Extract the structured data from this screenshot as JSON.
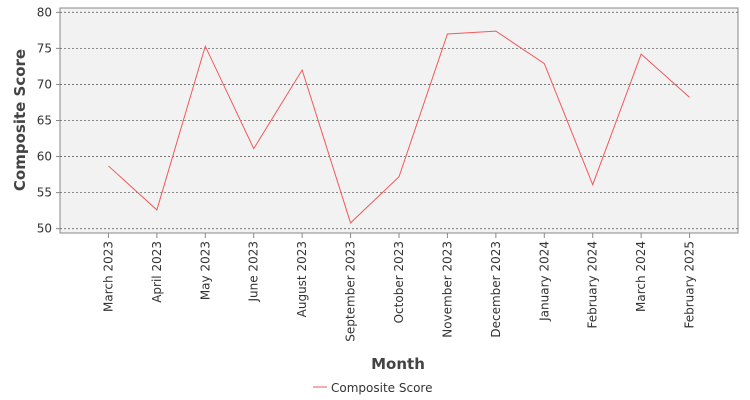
{
  "chart_data": {
    "type": "line",
    "x_label": "Month",
    "y_label": "Composite Score",
    "categories": [
      "March 2023",
      "April 2023",
      "May 2023",
      "June 2023",
      "August 2023",
      "September 2023",
      "October 2023",
      "November 2023",
      "December 2023",
      "January 2024",
      "February 2024",
      "March 2024",
      "February 2025"
    ],
    "series": [
      {
        "name": "Composite Score",
        "color": "#f05a5a",
        "values": [
          58.7,
          52.6,
          75.3,
          61.1,
          72.0,
          50.8,
          57.2,
          77.0,
          77.4,
          72.9,
          56.1,
          74.2,
          68.2
        ]
      }
    ],
    "ylim": [
      49.4,
      80.6
    ],
    "yticks": [
      50,
      55,
      60,
      65,
      70,
      75,
      80
    ],
    "grid": true
  }
}
